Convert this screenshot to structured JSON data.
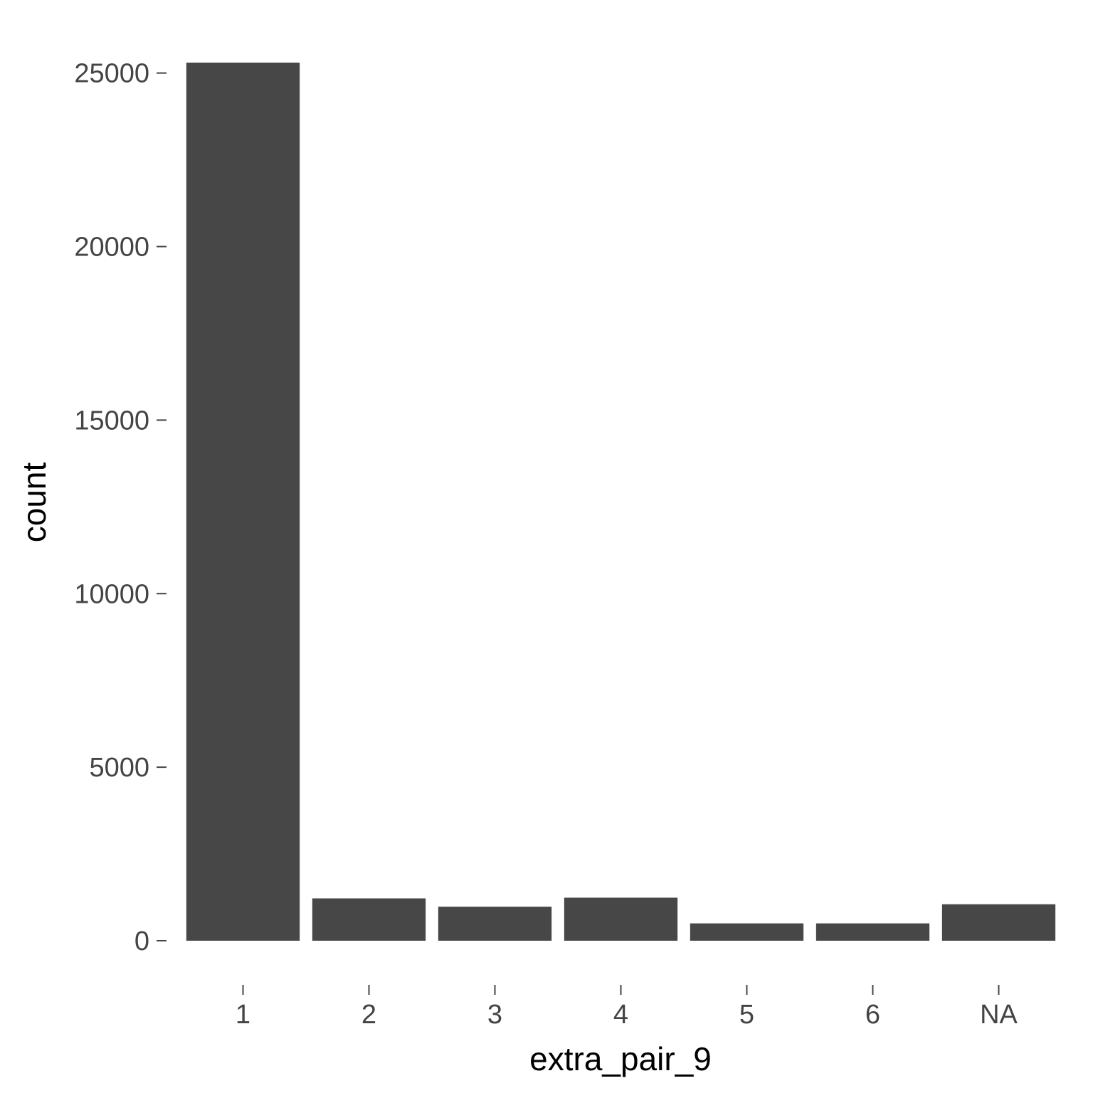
{
  "chart_data": {
    "type": "bar",
    "categories": [
      "1",
      "2",
      "3",
      "4",
      "5",
      "6",
      "NA"
    ],
    "values": [
      25300,
      1220,
      980,
      1240,
      500,
      500,
      1050
    ],
    "xlabel": "extra_pair_9",
    "ylabel": "count",
    "ylim": [
      0,
      25300
    ],
    "yticks": [
      0,
      5000,
      10000,
      15000,
      20000,
      25000
    ],
    "yticks_text": [
      "0",
      "5000",
      "10000",
      "15000",
      "20000",
      "25000"
    ],
    "grid": false,
    "bar_color": "#474747"
  }
}
